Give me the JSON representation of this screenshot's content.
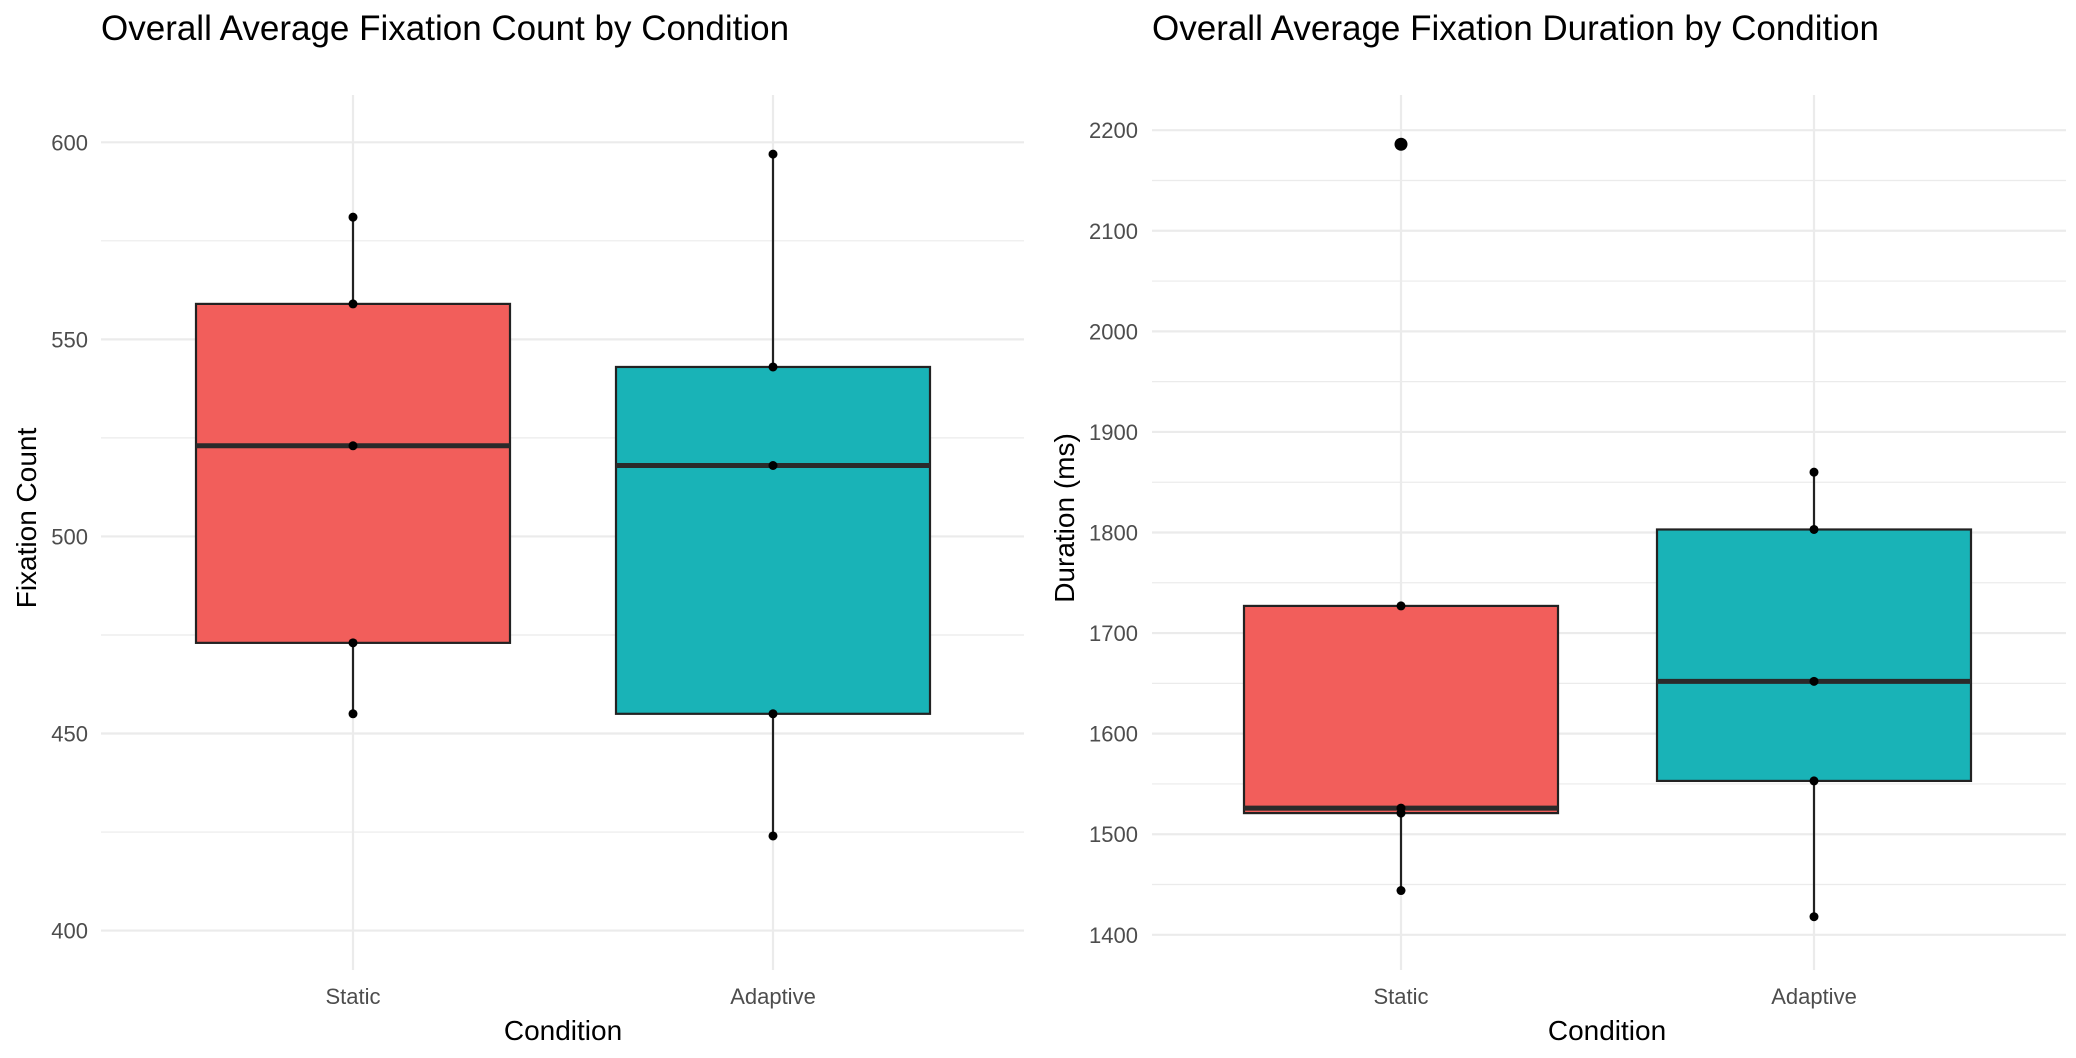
{
  "chart_data": [
    {
      "type": "boxplot",
      "title": "Overall Average Fixation Count by Condition",
      "xlabel": "Condition",
      "ylabel": "Fixation Count",
      "categories": [
        "Static",
        "Adaptive"
      ],
      "ylim": [
        390,
        612
      ],
      "y_ticks": [
        400,
        450,
        500,
        550,
        600
      ],
      "y_tick_labels": [
        "400",
        "450",
        "500",
        "550",
        "600"
      ],
      "grid": true,
      "boxes": [
        {
          "category": "Static",
          "whisker_low": 455,
          "q1": 473,
          "median": 523,
          "q3": 559,
          "whisker_high": 581,
          "fill": "#F25E5B"
        },
        {
          "category": "Adaptive",
          "whisker_low": 424,
          "q1": 455,
          "median": 518,
          "q3": 543,
          "whisker_high": 597,
          "fill": "#19B3B7"
        }
      ],
      "points": [
        {
          "category": "Static",
          "values": [
            581,
            559,
            523,
            473,
            455
          ]
        },
        {
          "category": "Adaptive",
          "values": [
            597,
            543,
            518,
            455,
            424
          ]
        }
      ],
      "outliers": []
    },
    {
      "type": "boxplot",
      "title": "Overall Average Fixation Duration by Condition",
      "xlabel": "Condition",
      "ylabel": "Duration (ms)",
      "categories": [
        "Static",
        "Adaptive"
      ],
      "ylim": [
        1365,
        2235
      ],
      "y_ticks": [
        1400,
        1500,
        1600,
        1700,
        1800,
        1900,
        2000,
        2100,
        2200
      ],
      "y_tick_labels": [
        "1400",
        "1500",
        "1600",
        "1700",
        "1800",
        "1900",
        "2000",
        "2100",
        "2200"
      ],
      "grid": true,
      "boxes": [
        {
          "category": "Static",
          "whisker_low": 1444,
          "q1": 1521,
          "median": 1526,
          "q3": 1727,
          "whisker_high": 1727,
          "fill": "#F25E5B"
        },
        {
          "category": "Adaptive",
          "whisker_low": 1418,
          "q1": 1553,
          "median": 1652,
          "q3": 1803,
          "whisker_high": 1860,
          "fill": "#19B3B7"
        }
      ],
      "points": [
        {
          "category": "Static",
          "values": [
            2186,
            1727,
            1526,
            1521,
            1444
          ]
        },
        {
          "category": "Adaptive",
          "values": [
            1860,
            1803,
            1652,
            1553,
            1418
          ]
        }
      ],
      "outliers": [
        {
          "category": "Static",
          "value": 2186
        }
      ]
    }
  ]
}
